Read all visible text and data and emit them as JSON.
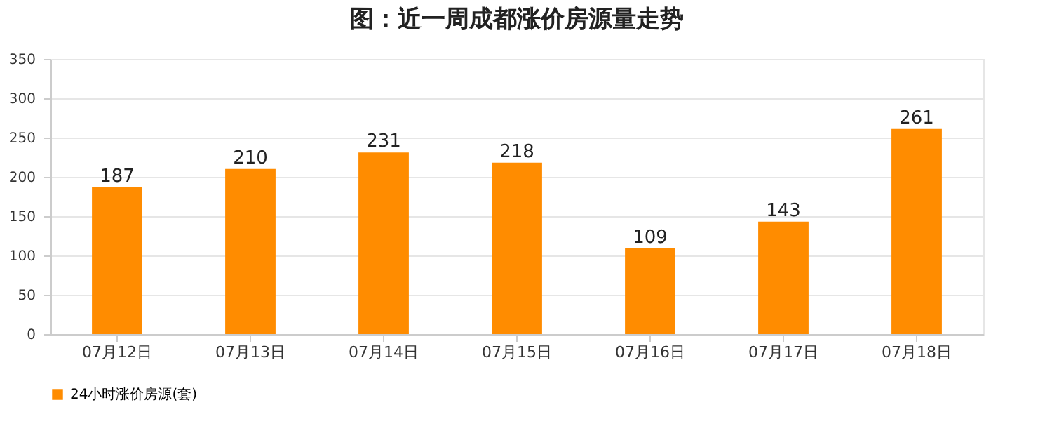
{
  "chart_data": {
    "type": "bar",
    "title": "图：近一周成都涨价房源量走势",
    "categories": [
      "07月12日",
      "07月13日",
      "07月14日",
      "07月15日",
      "07月16日",
      "07月17日",
      "07月18日"
    ],
    "series": [
      {
        "name": "24小时涨价房源(套)",
        "color": "#ff8c00",
        "values": [
          187,
          210,
          231,
          218,
          109,
          143,
          261
        ]
      }
    ],
    "ylim": [
      0,
      350
    ],
    "yticks": [
      0,
      50,
      100,
      150,
      200,
      250,
      300,
      350
    ],
    "grid": "y",
    "legend": "bottom",
    "data_labels": true
  }
}
